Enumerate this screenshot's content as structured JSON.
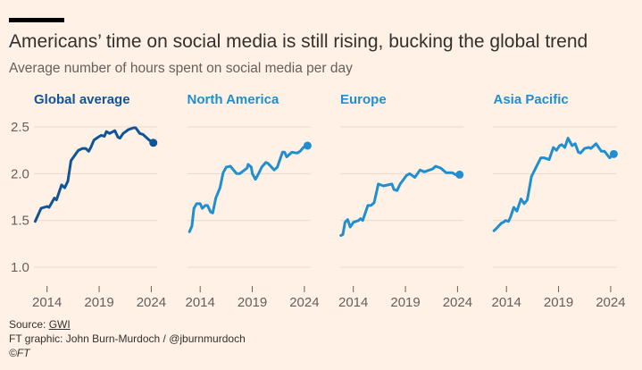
{
  "header": {
    "title": "Americans’ time on social media is still rising, bucking the global trend",
    "subtitle": "Average number of hours spent on social media per day"
  },
  "footer": {
    "source_label": "Source: ",
    "source_link": "GWI",
    "credit": "FT graphic: John Burn-Murdoch / @jburnmurdoch",
    "copyright": "©FT"
  },
  "colors": {
    "background": "#fff1e5",
    "global": "#0f5499",
    "regions": "#1f8fd0",
    "grid": "#e6d9ce"
  },
  "chart_data": {
    "type": "line",
    "layout": "small-multiples",
    "yticks": [
      1.0,
      1.5,
      2.0,
      2.5
    ],
    "ytick_labels": [
      "1.0",
      "1.5",
      "2.0",
      "2.5"
    ],
    "ylim": [
      0.85,
      2.6
    ],
    "xticks": [
      2014,
      2019,
      2024
    ],
    "xtick_labels": [
      "2014",
      "2019",
      "2024"
    ],
    "xlim": [
      2012.6,
      2024.6
    ],
    "grid": true,
    "end_marker": true,
    "panels": [
      {
        "title": "Global average",
        "color": "#0f5499",
        "x": [
          2012.86,
          2013.43,
          2014,
          2014.2,
          2014.7,
          2014.9,
          2015.4,
          2015.7,
          2016,
          2016.3,
          2017,
          2017.4,
          2017.7,
          2018,
          2018.2,
          2018.5,
          2018.9,
          2019.2,
          2019.5,
          2019.7,
          2020,
          2020.5,
          2020.8,
          2021,
          2021.3,
          2021.8,
          2022.3,
          2022.5,
          2022.9,
          2023.2,
          2023.8,
          2024.2
        ],
        "y": [
          1.49,
          1.63,
          1.65,
          1.64,
          1.74,
          1.72,
          1.88,
          1.85,
          1.92,
          2.14,
          2.25,
          2.27,
          2.27,
          2.24,
          2.28,
          2.36,
          2.39,
          2.41,
          2.4,
          2.45,
          2.43,
          2.46,
          2.39,
          2.38,
          2.43,
          2.47,
          2.49,
          2.49,
          2.43,
          2.42,
          2.36,
          2.33
        ]
      },
      {
        "title": "North America",
        "color": "#1f8fd0",
        "x": [
          2012.97,
          2013.2,
          2013.4,
          2013.66,
          2014,
          2014.2,
          2014.5,
          2014.7,
          2015,
          2015.2,
          2015.5,
          2015.9,
          2016.2,
          2016.5,
          2016.9,
          2017.5,
          2017.8,
          2018.5,
          2018.6,
          2018.9,
          2019,
          2019.3,
          2019.6,
          2019.9,
          2020.3,
          2020.5,
          2021.1,
          2021.4,
          2021.9,
          2022.1,
          2022.3,
          2022.8,
          2023.3,
          2023.6,
          2023.9,
          2024.3
        ],
        "y": [
          1.38,
          1.44,
          1.63,
          1.68,
          1.68,
          1.63,
          1.66,
          1.66,
          1.59,
          1.58,
          1.74,
          1.85,
          2.01,
          2.07,
          2.08,
          2.0,
          2.0,
          2.06,
          2.1,
          2.07,
          2.0,
          1.94,
          2.0,
          2.07,
          2.12,
          2.11,
          2.04,
          2.07,
          2.23,
          2.23,
          2.18,
          2.23,
          2.22,
          2.24,
          2.28,
          2.3
        ]
      },
      {
        "title": "Europe",
        "color": "#1f8fd0",
        "x": [
          2012.8,
          2013,
          2013.2,
          2013.46,
          2013.7,
          2014,
          2014.5,
          2014.7,
          2014.9,
          2015.4,
          2015.7,
          2016,
          2016.4,
          2016.9,
          2017.7,
          2017.9,
          2018.2,
          2018.5,
          2019.1,
          2019.4,
          2019.9,
          2020.4,
          2020.8,
          2021.6,
          2021.9,
          2022.4,
          2022.9,
          2023.5,
          2023.8,
          2024.2
        ],
        "y": [
          1.34,
          1.35,
          1.48,
          1.51,
          1.43,
          1.48,
          1.5,
          1.52,
          1.5,
          1.66,
          1.66,
          1.69,
          1.89,
          1.87,
          1.89,
          1.83,
          1.82,
          1.89,
          1.98,
          2.0,
          1.96,
          2.04,
          2.02,
          2.05,
          2.08,
          2.06,
          2.01,
          2.01,
          1.99,
          1.99
        ]
      },
      {
        "title": "Asia Pacific",
        "color": "#1f8fd0",
        "x": [
          2012.8,
          2013,
          2013.5,
          2013.7,
          2013.9,
          2014.2,
          2014.4,
          2014.7,
          2015,
          2015.4,
          2015.7,
          2016,
          2016.4,
          2016.8,
          2017.3,
          2017.6,
          2018.1,
          2018.5,
          2018.8,
          2019.1,
          2019.3,
          2019.6,
          2019.9,
          2020.3,
          2020.6,
          2020.9,
          2021.1,
          2021.5,
          2021.9,
          2022.1,
          2022.6,
          2023.1,
          2023.4,
          2023.9,
          2024.3
        ],
        "y": [
          1.39,
          1.41,
          1.47,
          1.48,
          1.5,
          1.49,
          1.54,
          1.64,
          1.6,
          1.73,
          1.68,
          1.72,
          1.97,
          2.06,
          2.17,
          2.17,
          2.15,
          2.28,
          2.25,
          2.3,
          2.31,
          2.28,
          2.38,
          2.3,
          2.32,
          2.23,
          2.22,
          2.27,
          2.28,
          2.27,
          2.32,
          2.24,
          2.24,
          2.17,
          2.21
        ]
      }
    ]
  }
}
